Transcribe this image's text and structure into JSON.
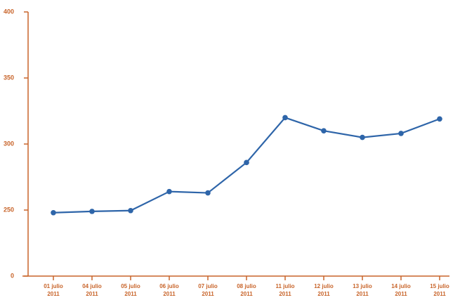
{
  "chart_data": {
    "type": "line",
    "categories": [
      "01 julio 2011",
      "04 julio 2011",
      "05 julio 2011",
      "06 julio 2011",
      "07 julio 2011",
      "08 julio 2011",
      "11 julio 2011",
      "12 julio 2011",
      "13 julio 2011",
      "14 julio 2011",
      "15 julio 2011"
    ],
    "values": [
      240,
      245,
      248,
      264,
      263,
      286,
      320,
      310,
      305,
      308,
      319
    ],
    "color": "#2e65a9",
    "axis_color": "#c8642a",
    "ylim": [
      0,
      400
    ],
    "yticks": [
      0,
      250,
      300,
      350,
      400
    ]
  }
}
